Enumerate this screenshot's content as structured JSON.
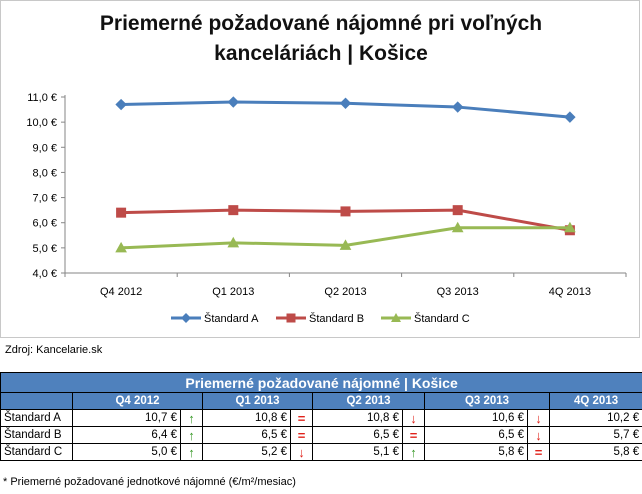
{
  "chart_data": {
    "type": "line",
    "title_line1": "Priemerné požadované nájomné pri voľných",
    "title_line2": "kanceláriách | Košice",
    "categories": [
      "Q4 2012",
      "Q1 2013",
      "Q2 2013",
      "Q3 2013",
      "4Q 2013"
    ],
    "series": [
      {
        "name": "Štandard A",
        "values": [
          10.7,
          10.8,
          10.75,
          10.6,
          10.2
        ],
        "color": "#4a7ebb"
      },
      {
        "name": "Štandard B",
        "values": [
          6.4,
          6.5,
          6.45,
          6.5,
          5.7
        ],
        "color": "#be4b48"
      },
      {
        "name": "Štandard C",
        "values": [
          5.0,
          5.2,
          5.1,
          5.8,
          5.8
        ],
        "color": "#98b954"
      }
    ],
    "yticks": [
      "4,0 €",
      "5,0 €",
      "6,0 €",
      "7,0 €",
      "8,0 €",
      "9,0 €",
      "10,0 €",
      "11,0 €"
    ],
    "ylim": [
      4.0,
      11.0
    ],
    "ystep": 1.0,
    "legend_position": "bottom",
    "grid": false
  },
  "source": "Zdroj: Kancelarie.sk",
  "table": {
    "title": "Priemerné požadované nájomné | Košice",
    "headers": [
      "Q4 2012",
      "Q1 2013",
      "Q2 2013",
      "Q3 2013",
      "4Q 2013"
    ],
    "rows": [
      {
        "label": "Štandard A",
        "cells": [
          {
            "v": "10,7 €",
            "t": "↑",
            "k": "up"
          },
          {
            "v": "10,8 €",
            "t": "=",
            "k": "eq"
          },
          {
            "v": "10,8 €",
            "t": "↓",
            "k": "down"
          },
          {
            "v": "10,6 €",
            "t": "↓",
            "k": "down"
          },
          {
            "v": "10,2 €",
            "t": "",
            "k": ""
          }
        ]
      },
      {
        "label": "Štandard B",
        "cells": [
          {
            "v": "6,4 €",
            "t": "↑",
            "k": "up"
          },
          {
            "v": "6,5 €",
            "t": "=",
            "k": "eq"
          },
          {
            "v": "6,5 €",
            "t": "=",
            "k": "eq"
          },
          {
            "v": "6,5 €",
            "t": "↓",
            "k": "down"
          },
          {
            "v": "5,7 €",
            "t": "",
            "k": ""
          }
        ]
      },
      {
        "label": "Štandard C",
        "cells": [
          {
            "v": "5,0 €",
            "t": "↑",
            "k": "up"
          },
          {
            "v": "5,2 €",
            "t": "↓",
            "k": "down"
          },
          {
            "v": "5,1 €",
            "t": "↑",
            "k": "up"
          },
          {
            "v": "5,8 €",
            "t": "=",
            "k": "eq"
          },
          {
            "v": "5,8 €",
            "t": "",
            "k": ""
          }
        ]
      }
    ]
  },
  "footnote": "* Priemerné požadované jednotkové nájomné (€/m²/mesiac)"
}
